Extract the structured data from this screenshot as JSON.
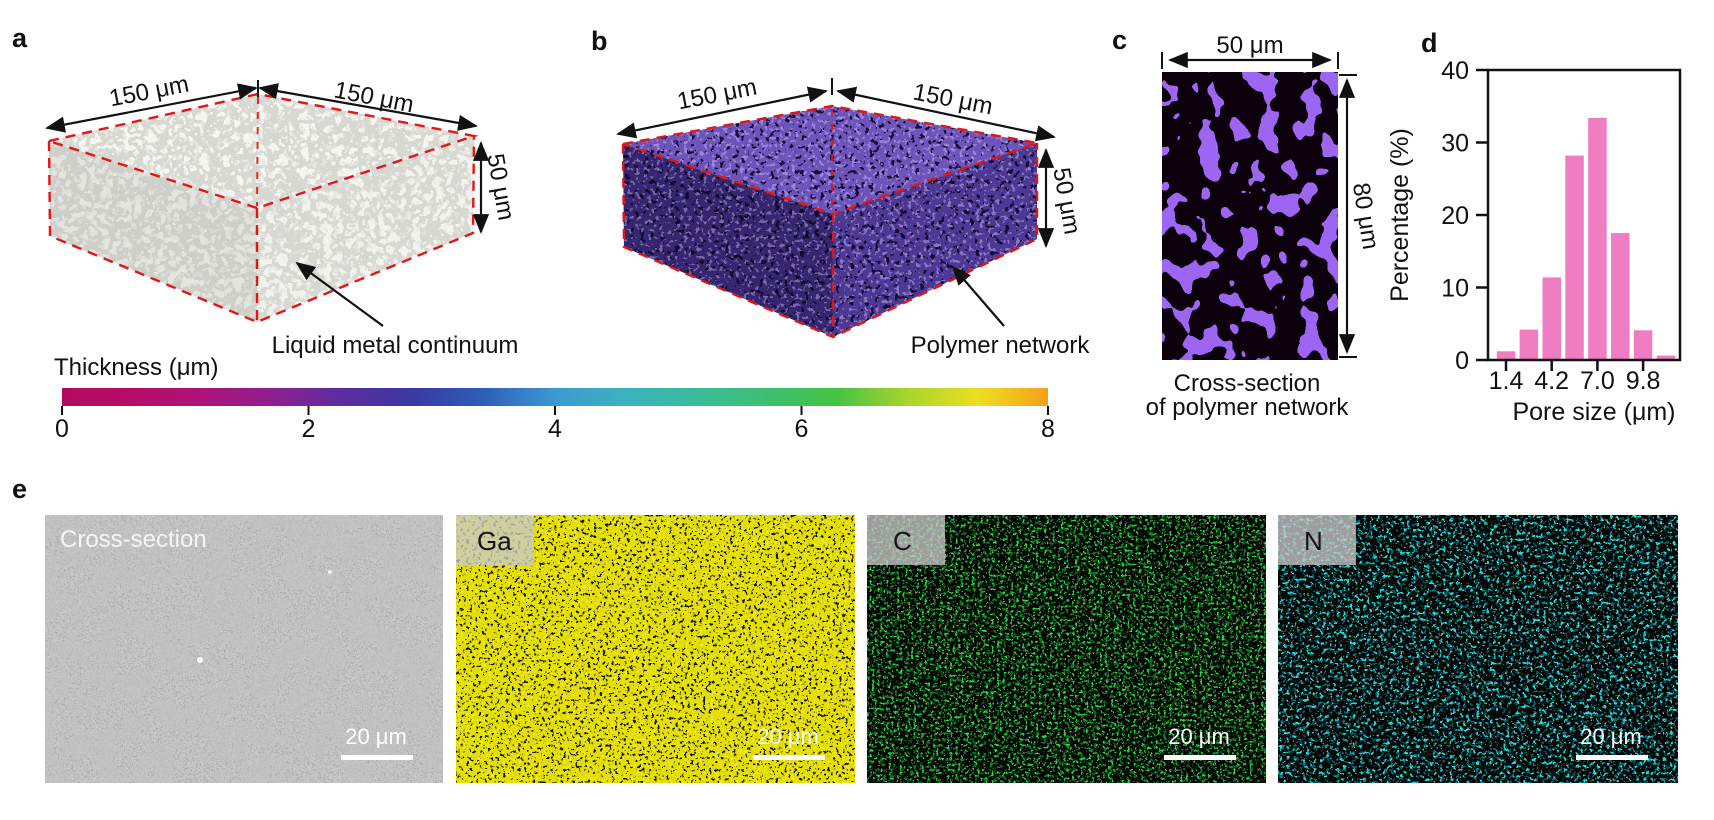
{
  "panels": {
    "a": "a",
    "b": "b",
    "c": "c",
    "d": "d",
    "e": "e"
  },
  "panel_a": {
    "dim_left": "150 μm",
    "dim_right": "150 μm",
    "dim_height": "50 μm",
    "annotation": "Liquid metal continuum",
    "outline_color": "#e01717"
  },
  "panel_b": {
    "dim_left": "150 μm",
    "dim_right": "150 μm",
    "dim_height": "50 μm",
    "annotation": "Polymer network",
    "outline_color": "#e01717"
  },
  "colorbar": {
    "title": "Thickness (μm)",
    "ticks": [
      "0",
      "2",
      "4",
      "6",
      "8"
    ],
    "gradient": [
      "#b20b5e",
      "#b50d66",
      "#ad1378",
      "#8e2090",
      "#5a2da2",
      "#3939a4",
      "#2f5fba",
      "#3b9ad2",
      "#3db2c0",
      "#3cbb9b",
      "#3dbf72",
      "#47c243",
      "#a8d42e",
      "#ecdf22",
      "#f5a019"
    ]
  },
  "panel_c": {
    "dim_width": "50 μm",
    "dim_height": "80 μm",
    "caption1": "Cross-section",
    "caption2": "of polymer network",
    "network_color": "#9c66f2"
  },
  "chart_data": {
    "type": "bar",
    "title": "",
    "categories": [
      1.4,
      2.8,
      4.2,
      5.6,
      7.0,
      8.4,
      9.8,
      11.2
    ],
    "values": [
      1.2,
      4.2,
      11.4,
      28.2,
      33.4,
      17.5,
      4.1,
      0.6
    ],
    "xlabel": "Pore size (μm)",
    "ylabel": "Percentage (%)",
    "xtick_labels": [
      "1.4",
      "4.2",
      "7.0",
      "9.8"
    ],
    "xtick_positions": [
      1.4,
      4.2,
      7.0,
      9.8
    ],
    "yticks": [
      0,
      10,
      20,
      30,
      40
    ],
    "ylim": [
      0,
      40
    ],
    "bar_color": "#f07cc2",
    "grid": false,
    "legend": null
  },
  "panel_e": {
    "images": [
      {
        "label": "Cross-section",
        "scalebar": "20 μm",
        "color": "#b6b6b6"
      },
      {
        "label": "Ga",
        "scalebar": "20 μm",
        "color": "#e4dd00"
      },
      {
        "label": "C",
        "scalebar": "20 μm",
        "color": "#2fd43c"
      },
      {
        "label": "N",
        "scalebar": "20 μm",
        "color": "#2bd7d7"
      }
    ]
  }
}
